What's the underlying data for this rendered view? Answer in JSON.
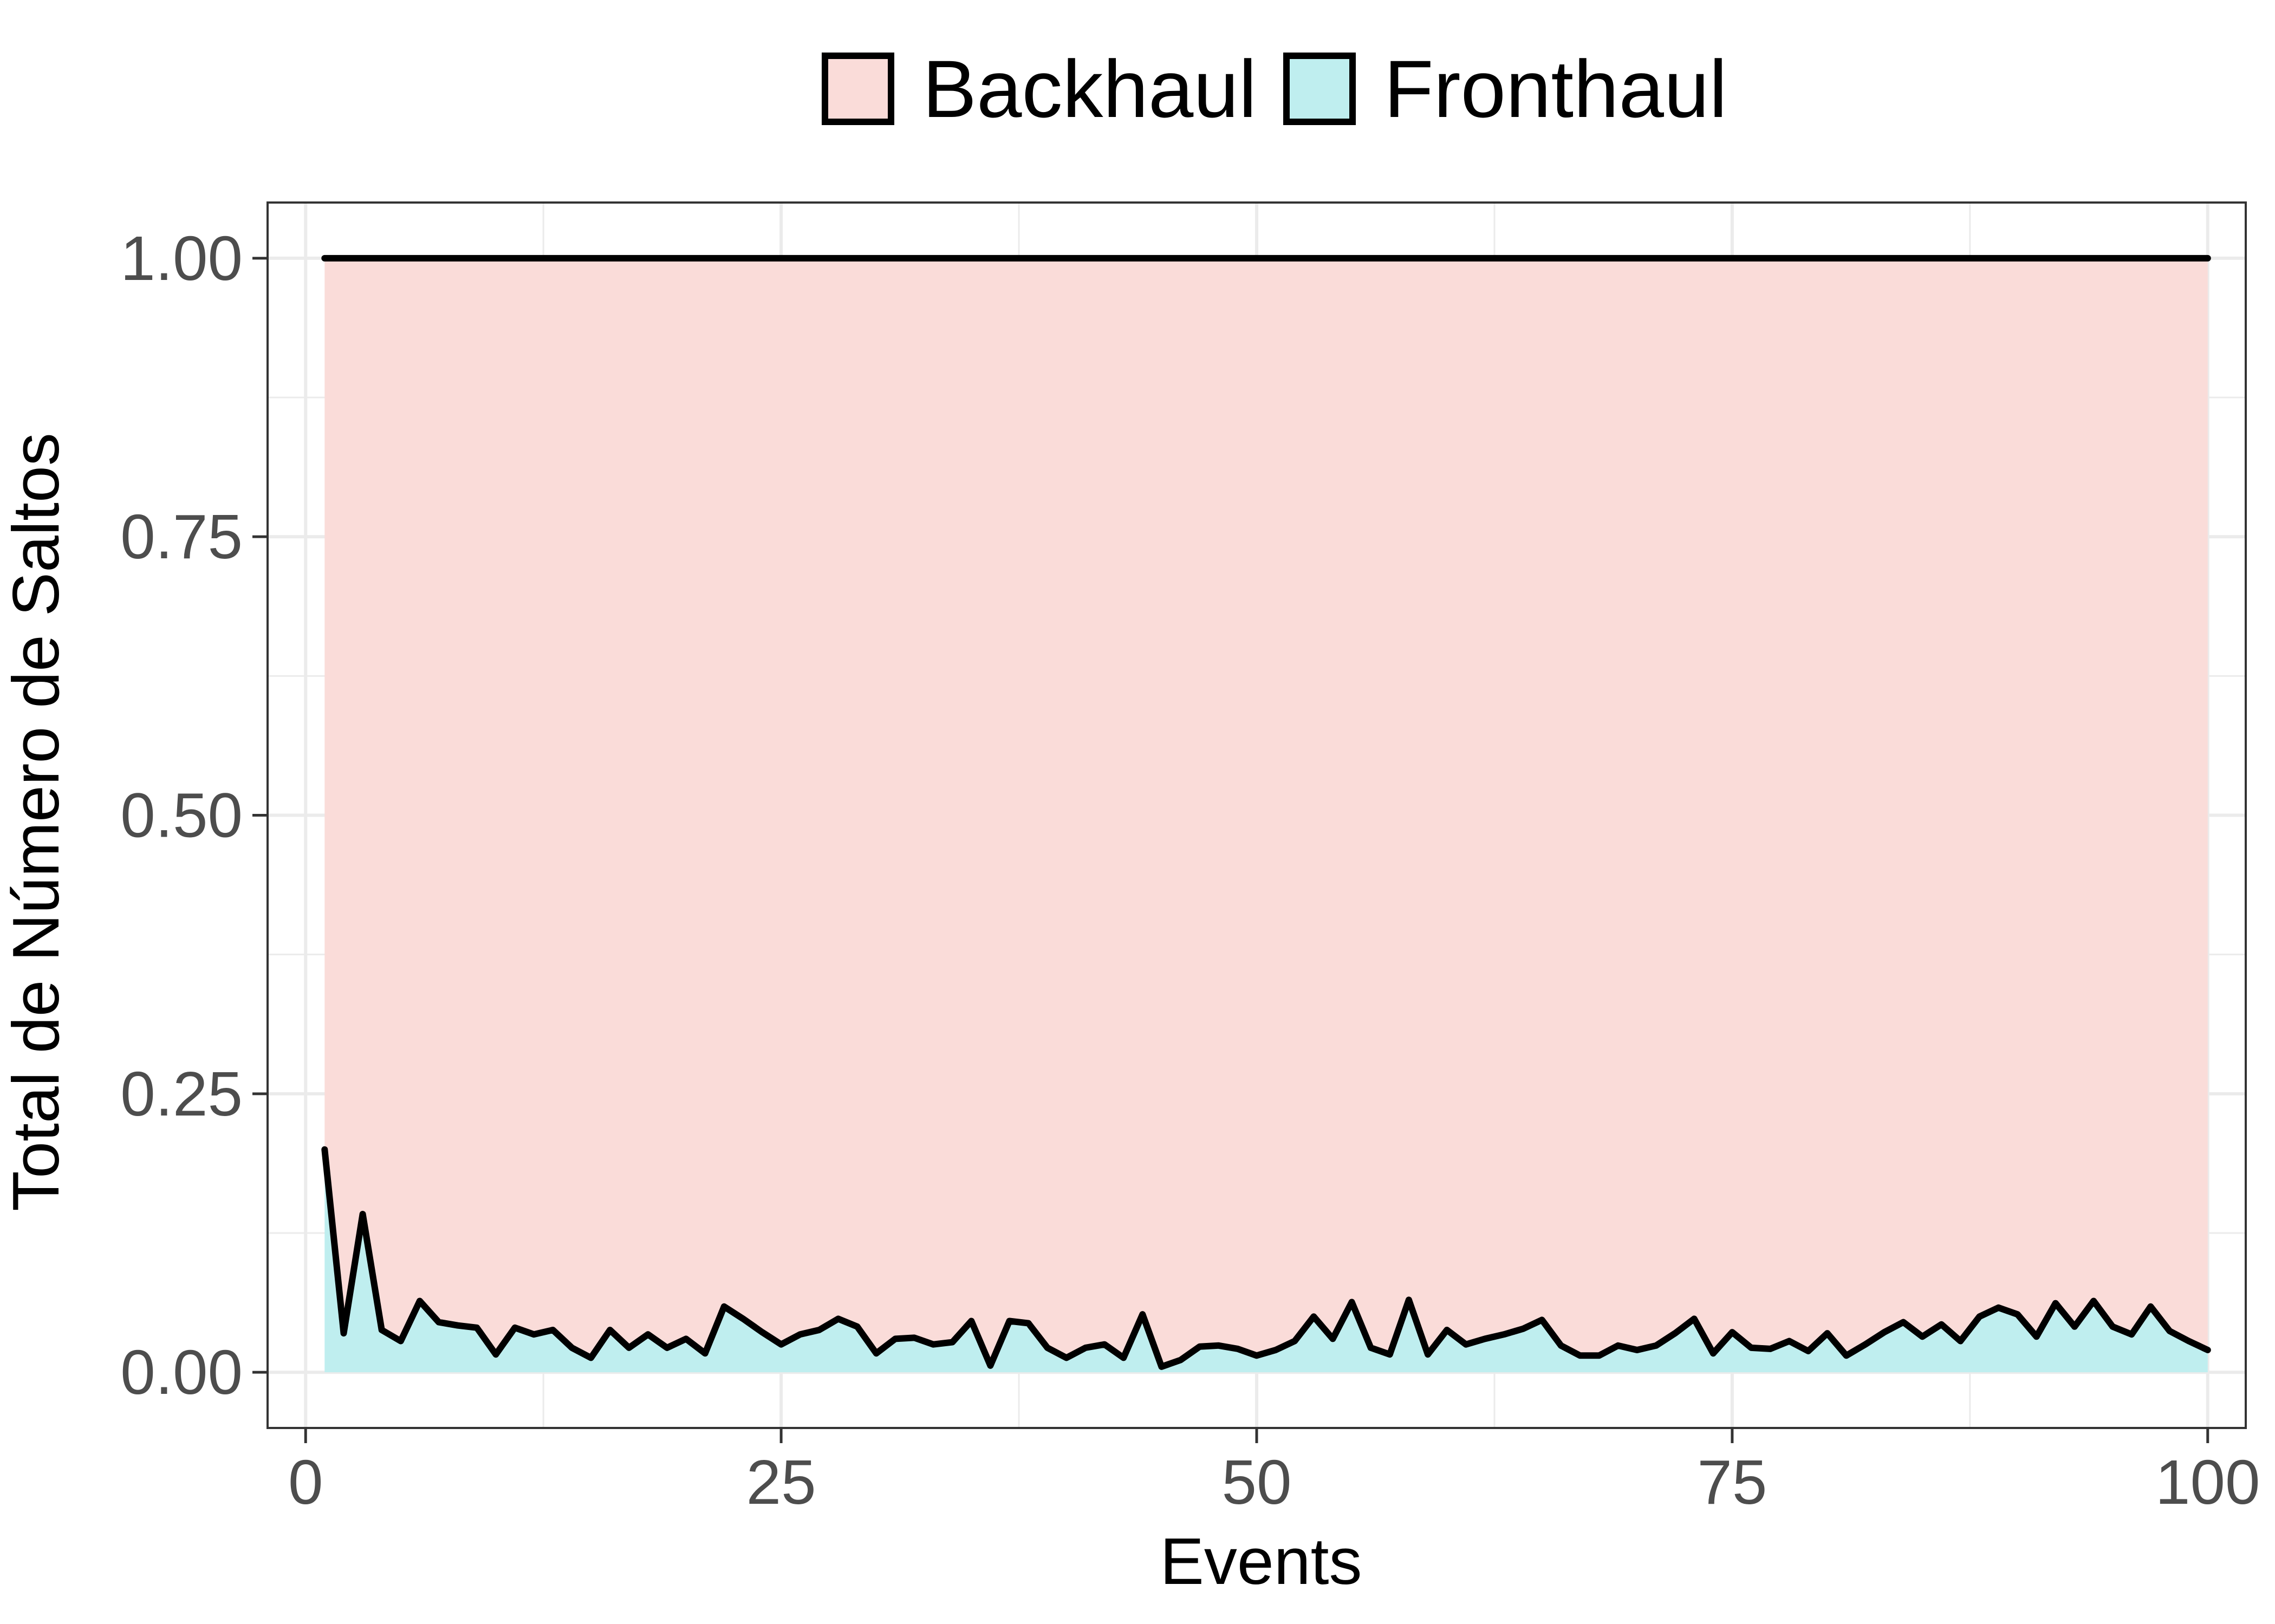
{
  "chart_data": {
    "type": "area",
    "title": "",
    "xlabel": "Events",
    "ylabel": "Total de Número de Saltos",
    "xlim": [
      -2,
      102
    ],
    "ylim": [
      -0.05,
      1.05
    ],
    "x_ticks": [
      0,
      25,
      50,
      75,
      100
    ],
    "x_tick_labels": [
      "0",
      "25",
      "50",
      "75",
      "100"
    ],
    "y_ticks": [
      0,
      0.25,
      0.5,
      0.75,
      1.0
    ],
    "y_tick_labels": [
      "0.00",
      "0.25",
      "0.50",
      "0.75",
      "1.00"
    ],
    "grid": true,
    "legend_position": "top",
    "stacking": "fill",
    "x": [
      1,
      2,
      3,
      4,
      5,
      6,
      7,
      8,
      9,
      10,
      11,
      12,
      13,
      14,
      15,
      16,
      17,
      18,
      19,
      20,
      21,
      22,
      23,
      24,
      25,
      26,
      27,
      28,
      29,
      30,
      31,
      32,
      33,
      34,
      35,
      36,
      37,
      38,
      39,
      40,
      41,
      42,
      43,
      44,
      45,
      46,
      47,
      48,
      49,
      50,
      51,
      52,
      53,
      54,
      55,
      56,
      57,
      58,
      59,
      60,
      61,
      62,
      63,
      64,
      65,
      66,
      67,
      68,
      69,
      70,
      71,
      72,
      73,
      74,
      75,
      76,
      77,
      78,
      79,
      80,
      81,
      82,
      83,
      84,
      85,
      86,
      87,
      88,
      89,
      90,
      91,
      92,
      93,
      94,
      95,
      96,
      97,
      98,
      99,
      100
    ],
    "series": [
      {
        "name": "Fronthaul",
        "color": "#bfeeef",
        "values": [
          0.2,
          0.035,
          0.142,
          0.038,
          0.028,
          0.064,
          0.045,
          0.042,
          0.04,
          0.016,
          0.04,
          0.034,
          0.038,
          0.022,
          0.013,
          0.038,
          0.022,
          0.034,
          0.022,
          0.03,
          0.017,
          0.059,
          0.048,
          0.036,
          0.025,
          0.034,
          0.038,
          0.048,
          0.041,
          0.017,
          0.03,
          0.031,
          0.025,
          0.027,
          0.046,
          0.006,
          0.046,
          0.044,
          0.022,
          0.013,
          0.022,
          0.025,
          0.013,
          0.052,
          0.005,
          0.011,
          0.023,
          0.024,
          0.021,
          0.015,
          0.02,
          0.028,
          0.05,
          0.03,
          0.063,
          0.022,
          0.016,
          0.065,
          0.016,
          0.038,
          0.025,
          0.03,
          0.034,
          0.039,
          0.047,
          0.024,
          0.015,
          0.015,
          0.024,
          0.02,
          0.024,
          0.035,
          0.048,
          0.017,
          0.036,
          0.022,
          0.021,
          0.028,
          0.019,
          0.035,
          0.015,
          0.025,
          0.036,
          0.045,
          0.032,
          0.043,
          0.028,
          0.05,
          0.058,
          0.052,
          0.032,
          0.062,
          0.041,
          0.064,
          0.041,
          0.034,
          0.059,
          0.037,
          0.028,
          0.02
        ]
      },
      {
        "name": "Backhaul",
        "color": "#fadcd9",
        "values": [
          0.8,
          0.965,
          0.858,
          0.962,
          0.972,
          0.936,
          0.955,
          0.958,
          0.96,
          0.984,
          0.96,
          0.966,
          0.962,
          0.978,
          0.987,
          0.962,
          0.978,
          0.966,
          0.978,
          0.97,
          0.983,
          0.941,
          0.952,
          0.964,
          0.975,
          0.966,
          0.962,
          0.952,
          0.959,
          0.983,
          0.97,
          0.969,
          0.975,
          0.973,
          0.954,
          0.994,
          0.954,
          0.956,
          0.978,
          0.987,
          0.978,
          0.975,
          0.987,
          0.948,
          0.995,
          0.989,
          0.977,
          0.976,
          0.979,
          0.985,
          0.98,
          0.972,
          0.95,
          0.97,
          0.937,
          0.978,
          0.984,
          0.935,
          0.984,
          0.962,
          0.975,
          0.97,
          0.966,
          0.961,
          0.953,
          0.976,
          0.985,
          0.985,
          0.976,
          0.98,
          0.976,
          0.965,
          0.952,
          0.983,
          0.964,
          0.978,
          0.979,
          0.972,
          0.981,
          0.965,
          0.985,
          0.975,
          0.964,
          0.955,
          0.968,
          0.957,
          0.972,
          0.95,
          0.942,
          0.948,
          0.968,
          0.938,
          0.959,
          0.936,
          0.959,
          0.966,
          0.941,
          0.963,
          0.972,
          0.98
        ]
      }
    ],
    "legend": {
      "entries": [
        {
          "label": "Backhaul",
          "color": "#fadcd9"
        },
        {
          "label": "Fronthaul",
          "color": "#bfeeef"
        }
      ]
    }
  }
}
